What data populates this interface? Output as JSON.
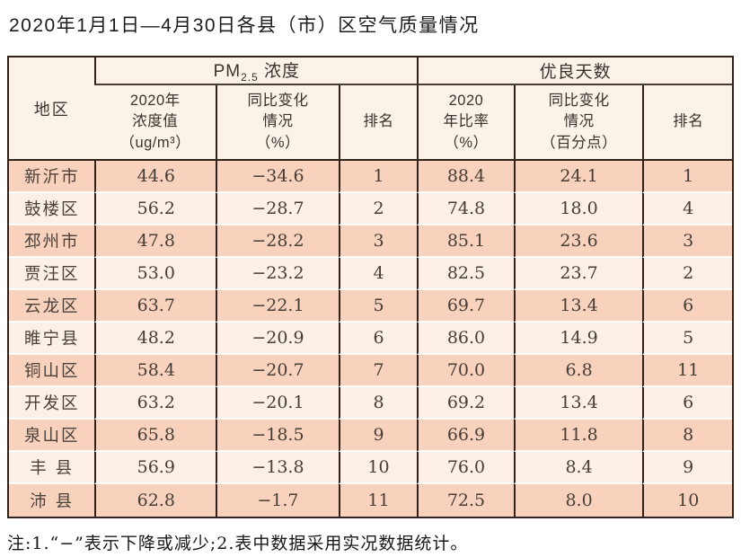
{
  "title": "2020年1月1日—4月30日各县（市）区空气质量情况",
  "note": "注:1.“−”表示下降或减少;2.表中数据采用实况数据统计。",
  "colors": {
    "row_odd_bg": "#f9d2bd",
    "row_even_bg": "#fcf0e8",
    "header_bg": "#fbf2e8",
    "border": "#33221b",
    "text": "#463d36"
  },
  "table": {
    "region_header": "地区",
    "pm_group": {
      "prefix": "PM",
      "sub": "2.5",
      "suffix": " 浓度"
    },
    "good_days_label": "优良天数",
    "sub_headers": [
      "2020年\n浓度值\n（ug/m³）",
      "同比变化\n情况\n（%）",
      "排名",
      "2020\n年比率\n（%）",
      "同比变化\n情况\n（百分点）",
      "排名"
    ]
  },
  "chart_data": {
    "type": "table",
    "title": "2020年1月1日—4月30日各县（市）区空气质量情况",
    "columns": [
      "地区",
      "PM2.5浓度 2020年浓度值（ug/m³）",
      "PM2.5浓度 同比变化情况（%）",
      "PM2.5浓度 排名",
      "优良天数 2020年比率（%）",
      "优良天数 同比变化情况（百分点）",
      "优良天数 排名"
    ],
    "rows": [
      [
        "新沂市",
        "44.6",
        "−34.6",
        "1",
        "88.4",
        "24.1",
        "1"
      ],
      [
        "鼓楼区",
        "56.2",
        "−28.7",
        "2",
        "74.8",
        "18.0",
        "4"
      ],
      [
        "邳州市",
        "47.8",
        "−28.2",
        "3",
        "85.1",
        "23.6",
        "3"
      ],
      [
        "贾汪区",
        "53.0",
        "−23.2",
        "4",
        "82.5",
        "23.7",
        "2"
      ],
      [
        "云龙区",
        "63.7",
        "−22.1",
        "5",
        "69.7",
        "13.4",
        "6"
      ],
      [
        "睢宁县",
        "48.2",
        "−20.9",
        "6",
        "86.0",
        "14.9",
        "5"
      ],
      [
        "铜山区",
        "58.4",
        "−20.7",
        "7",
        "70.0",
        "6.8",
        "11"
      ],
      [
        "开发区",
        "63.2",
        "−20.1",
        "8",
        "69.2",
        "13.4",
        "6"
      ],
      [
        "泉山区",
        "65.8",
        "−18.5",
        "9",
        "66.9",
        "11.8",
        "8"
      ],
      [
        "丰 县",
        "56.9",
        "−13.8",
        "10",
        "76.0",
        "8.4",
        "9"
      ],
      [
        "沛 县",
        "62.8",
        "−1.7",
        "11",
        "72.5",
        "8.0",
        "10"
      ]
    ]
  }
}
